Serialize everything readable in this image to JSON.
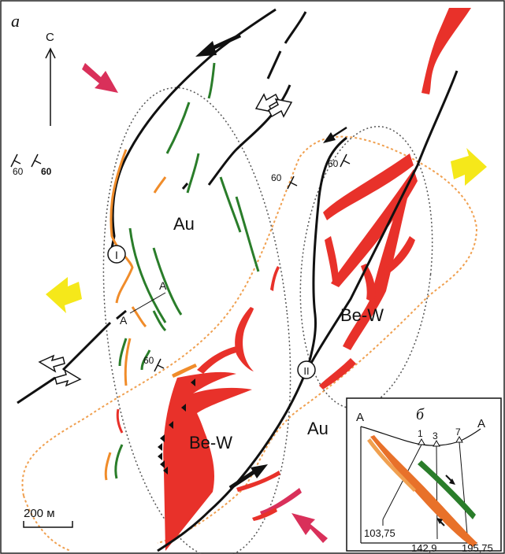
{
  "panel_label": "а",
  "north_label": "С",
  "inset": {
    "panel_label": "б",
    "section_left": "А",
    "section_right": "А",
    "well_1": "1",
    "well_3": "3",
    "well_7": "7",
    "depth_1": "103,75",
    "depth_2": "142,9",
    "depth_3": "195,75"
  },
  "zones": {
    "au_upper": "Au",
    "au_lower": "Au",
    "bew_right": "Be-W",
    "bew_lower": "Be-W"
  },
  "faults": {
    "fault_1": "I",
    "fault_2": "II"
  },
  "dips": {
    "dip_a": "60",
    "dip_b": "60",
    "dip_c": "60",
    "dip_d": "60",
    "dip_e": "60"
  },
  "section_line": {
    "end_a": "А",
    "end_b": "А"
  },
  "scale_bar": "200 м",
  "colors": {
    "red_body": "#e8312a",
    "orange": "#f08c2a",
    "green": "#2a7d2a",
    "compression_arrow": "#d9305a",
    "extension_arrow": "#f5e81a",
    "dotted": "#555555",
    "orange_dotted": "#f0a050"
  }
}
